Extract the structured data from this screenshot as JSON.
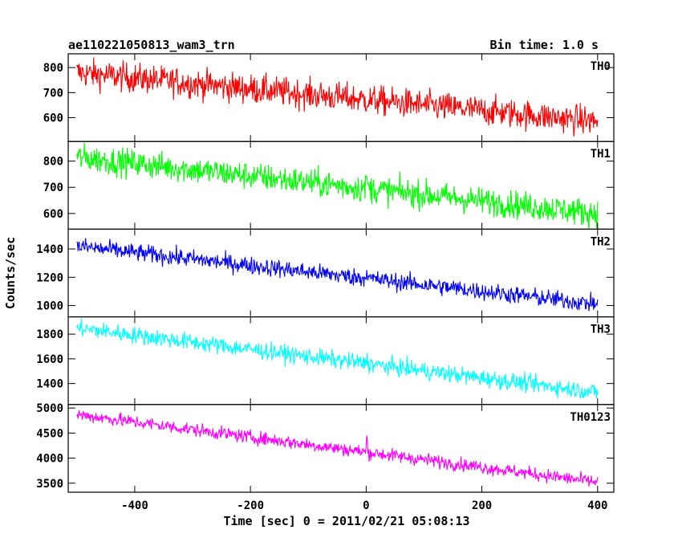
{
  "chart_data": {
    "type": "line",
    "title_left": "ae110221050813_wam3_trn",
    "title_right": "Bin time: 1.0 s",
    "xlabel": "Time [sec] 0 = 2011/02/21 05:08:13",
    "ylabel": "Counts/sec",
    "xlim": [
      -515,
      428
    ],
    "x_ticks": [
      -400,
      -200,
      0,
      200,
      400
    ],
    "x_range": [
      -500,
      400
    ],
    "panels": [
      {
        "name": "TH0",
        "color": "#ff0000",
        "ylim": [
          505,
          855
        ],
        "y_ticks": [
          600,
          700,
          800
        ],
        "start": 780,
        "end": 585,
        "noise": 42,
        "spike": 0
      },
      {
        "name": "TH1",
        "color": "#00ff00",
        "ylim": [
          540,
          875
        ],
        "y_ticks": [
          600,
          700,
          800
        ],
        "start": 815,
        "end": 600,
        "noise": 38,
        "spike": 60
      },
      {
        "name": "TH2",
        "color": "#0000ff",
        "ylim": [
          920,
          1540
        ],
        "y_ticks": [
          1000,
          1200,
          1400
        ],
        "start": 1420,
        "end": 1010,
        "noise": 45,
        "spike": 90
      },
      {
        "name": "TH3",
        "color": "#00ffff",
        "ylim": [
          1230,
          1940
        ],
        "y_ticks": [
          1400,
          1600,
          1800
        ],
        "start": 1850,
        "end": 1330,
        "noise": 50,
        "spike": 60
      },
      {
        "name": "TH0123",
        "color": "#ff00ff",
        "ylim": [
          3320,
          5070
        ],
        "y_ticks": [
          3500,
          4000,
          4500,
          5000
        ],
        "start": 4870,
        "end": 3520,
        "noise": 95,
        "spike": 300
      }
    ]
  }
}
